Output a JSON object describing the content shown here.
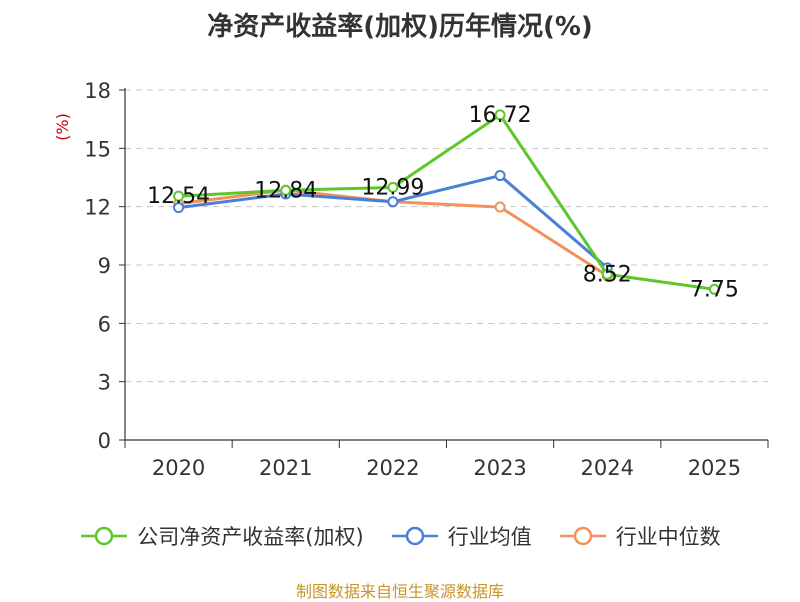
{
  "colors": {
    "roe": "#5cc72b",
    "industry_avg": "#4a7fd8",
    "industry_median": "#f2925a",
    "source": "#c8952a",
    "ylabel": "#cc0000"
  },
  "chart_data": {
    "type": "line",
    "title": "净资产收益率(加权)历年情况(%)",
    "ylabel": "(%)",
    "xlabel": "",
    "categories": [
      "2020",
      "2021",
      "2022",
      "2023",
      "2024",
      "2025"
    ],
    "ylim": [
      0,
      18
    ],
    "yticks": [
      0,
      3,
      6,
      9,
      12,
      15,
      18
    ],
    "grid": true,
    "legend_position": "bottom",
    "series": [
      {
        "name": "公司净资产收益率(加权)",
        "color": "#5cc72b",
        "values": [
          12.54,
          12.84,
          12.99,
          16.72,
          8.52,
          7.75
        ],
        "data_labels": [
          "12.54",
          "12.84",
          "12.99",
          "16.72",
          "8.52",
          "7.75"
        ],
        "show_labels": true
      },
      {
        "name": "行业均值",
        "color": "#4a7fd8",
        "values": [
          11.95,
          12.65,
          12.25,
          13.6,
          8.85,
          null
        ],
        "show_labels": false
      },
      {
        "name": "行业中位数",
        "color": "#f2925a",
        "values": [
          12.15,
          12.85,
          12.25,
          11.98,
          8.45,
          null
        ],
        "show_labels": false
      }
    ]
  },
  "source": "制图数据来自恒生聚源数据库"
}
